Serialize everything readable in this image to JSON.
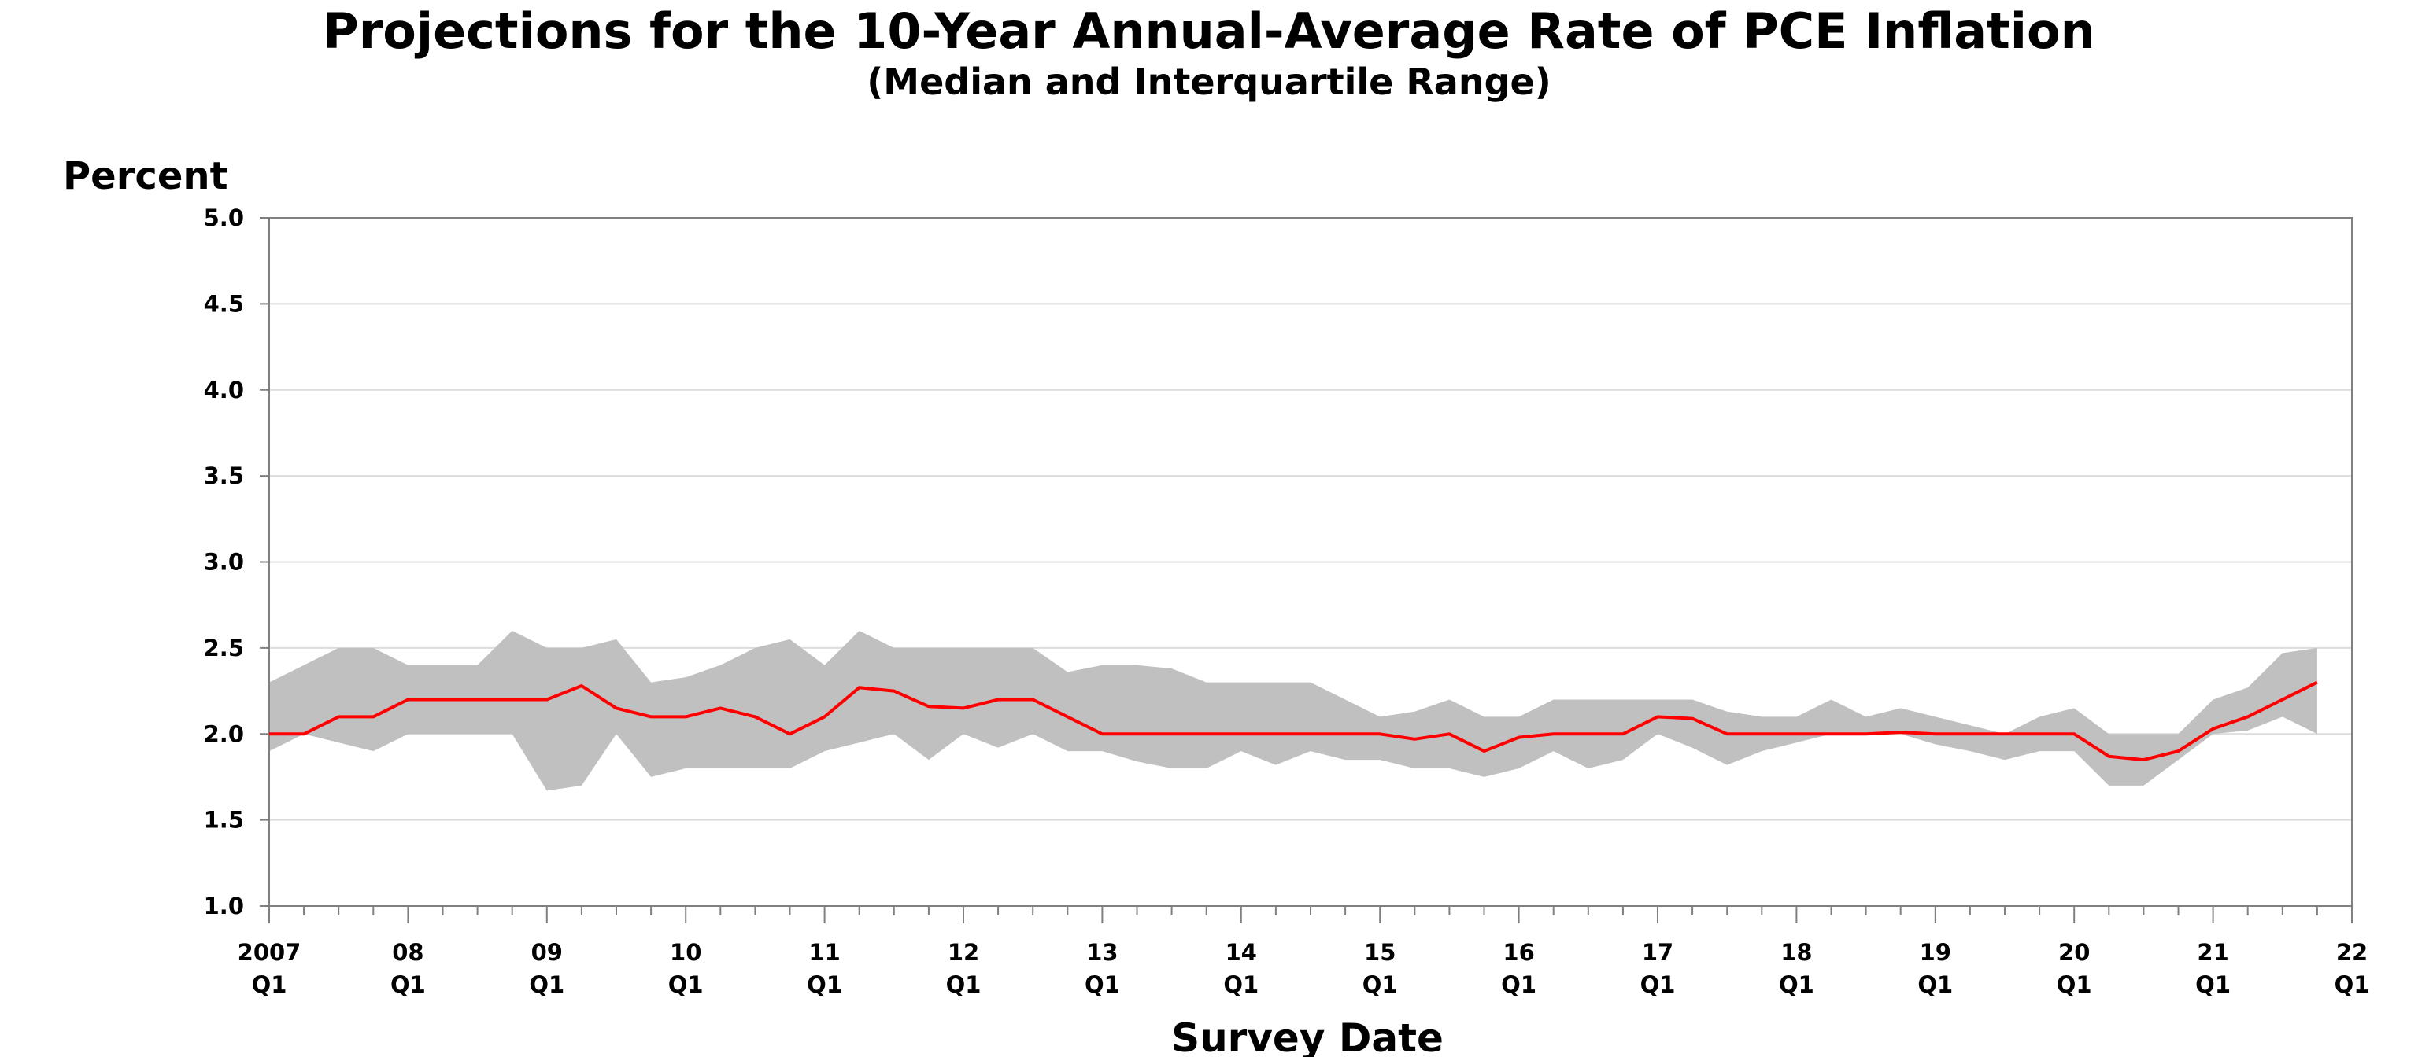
{
  "chart_data": {
    "type": "area",
    "title": "Projections for the 10-Year Annual-Average Rate of PCE Inflation",
    "subtitle": "(Median and Interquartile Range)",
    "ylabel": "Percent",
    "xlabel": "Survey Date",
    "ylim": [
      1.0,
      5.0
    ],
    "yticks": [
      "1.0",
      "1.5",
      "2.0",
      "2.5",
      "3.0",
      "3.5",
      "4.0",
      "4.5",
      "5.0"
    ],
    "xlim": [
      2007.0,
      2022.0
    ],
    "xtick_labels": [
      {
        "year": "2007",
        "q": "Q1"
      },
      {
        "year": "08",
        "q": "Q1"
      },
      {
        "year": "09",
        "q": "Q1"
      },
      {
        "year": "10",
        "q": "Q1"
      },
      {
        "year": "11",
        "q": "Q1"
      },
      {
        "year": "12",
        "q": "Q1"
      },
      {
        "year": "13",
        "q": "Q1"
      },
      {
        "year": "14",
        "q": "Q1"
      },
      {
        "year": "15",
        "q": "Q1"
      },
      {
        "year": "16",
        "q": "Q1"
      },
      {
        "year": "17",
        "q": "Q1"
      },
      {
        "year": "18",
        "q": "Q1"
      },
      {
        "year": "19",
        "q": "Q1"
      },
      {
        "year": "20",
        "q": "Q1"
      },
      {
        "year": "21",
        "q": "Q1"
      },
      {
        "year": "22",
        "q": "Q1"
      }
    ],
    "grid": true,
    "legend": "none",
    "x": [
      2007.0,
      2007.25,
      2007.5,
      2007.75,
      2008.0,
      2008.25,
      2008.5,
      2008.75,
      2009.0,
      2009.25,
      2009.5,
      2009.75,
      2010.0,
      2010.25,
      2010.5,
      2010.75,
      2011.0,
      2011.25,
      2011.5,
      2011.75,
      2012.0,
      2012.25,
      2012.5,
      2012.75,
      2013.0,
      2013.25,
      2013.5,
      2013.75,
      2014.0,
      2014.25,
      2014.5,
      2014.75,
      2015.0,
      2015.25,
      2015.5,
      2015.75,
      2016.0,
      2016.25,
      2016.5,
      2016.75,
      2017.0,
      2017.25,
      2017.5,
      2017.75,
      2018.0,
      2018.25,
      2018.5,
      2018.75,
      2019.0,
      2019.25,
      2019.5,
      2019.75,
      2020.0,
      2020.25,
      2020.5,
      2020.75,
      2021.0,
      2021.25,
      2021.5,
      2021.75
    ],
    "series": [
      {
        "role": "upper",
        "color": "#c0c0c0",
        "values": [
          2.3,
          2.4,
          2.5,
          2.5,
          2.4,
          2.4,
          2.4,
          2.6,
          2.5,
          2.5,
          2.55,
          2.3,
          2.33,
          2.4,
          2.5,
          2.55,
          2.4,
          2.6,
          2.5,
          2.5,
          2.5,
          2.5,
          2.5,
          2.36,
          2.4,
          2.4,
          2.38,
          2.3,
          2.3,
          2.3,
          2.3,
          2.2,
          2.1,
          2.13,
          2.2,
          2.1,
          2.1,
          2.2,
          2.2,
          2.2,
          2.2,
          2.2,
          2.13,
          2.1,
          2.1,
          2.2,
          2.1,
          2.15,
          2.1,
          2.05,
          2.0,
          2.1,
          2.15,
          2.0,
          2.0,
          2.0,
          2.2,
          2.27,
          2.47,
          2.5
        ]
      },
      {
        "role": "lower",
        "color": "#c0c0c0",
        "values": [
          1.9,
          2.0,
          1.95,
          1.9,
          2.0,
          2.0,
          2.0,
          2.0,
          1.67,
          1.7,
          2.0,
          1.75,
          1.8,
          1.8,
          1.8,
          1.8,
          1.9,
          1.95,
          2.0,
          1.85,
          2.0,
          1.92,
          2.0,
          1.9,
          1.9,
          1.84,
          1.8,
          1.8,
          1.9,
          1.82,
          1.9,
          1.85,
          1.85,
          1.8,
          1.8,
          1.75,
          1.8,
          1.9,
          1.8,
          1.85,
          2.0,
          1.92,
          1.82,
          1.9,
          1.95,
          2.0,
          2.0,
          2.0,
          1.94,
          1.9,
          1.85,
          1.9,
          1.9,
          1.7,
          1.7,
          1.85,
          2.0,
          2.02,
          2.1,
          2.0
        ]
      },
      {
        "role": "median",
        "color": "#ff0000",
        "values": [
          2.0,
          2.0,
          2.1,
          2.1,
          2.2,
          2.2,
          2.2,
          2.2,
          2.2,
          2.28,
          2.15,
          2.1,
          2.1,
          2.15,
          2.1,
          2.0,
          2.1,
          2.27,
          2.25,
          2.16,
          2.15,
          2.2,
          2.2,
          2.1,
          2.0,
          2.0,
          2.0,
          2.0,
          2.0,
          2.0,
          2.0,
          2.0,
          2.0,
          1.97,
          2.0,
          1.9,
          1.98,
          2.0,
          2.0,
          2.0,
          2.1,
          2.09,
          2.0,
          2.0,
          2.0,
          2.0,
          2.0,
          2.01,
          2.0,
          2.0,
          2.0,
          2.0,
          2.0,
          1.87,
          1.85,
          1.9,
          2.03,
          2.1,
          2.2,
          2.3
        ]
      }
    ]
  }
}
